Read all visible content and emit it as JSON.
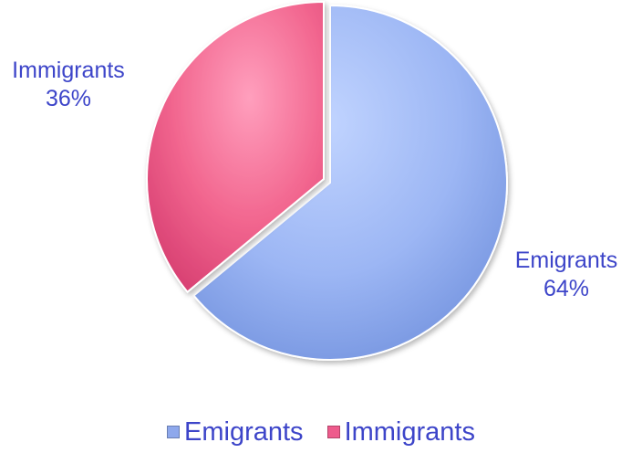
{
  "chart_data": {
    "type": "pie",
    "title": "",
    "slices": [
      {
        "label": "Emigrants",
        "value": 64,
        "display": "64%",
        "color": "#8ea8ec"
      },
      {
        "label": "Immigrants",
        "value": 36,
        "display": "36%",
        "color": "#ee5b8c"
      }
    ],
    "legend": {
      "position": "bottom",
      "entries": [
        "Emigrants",
        "Immigrants"
      ]
    }
  }
}
